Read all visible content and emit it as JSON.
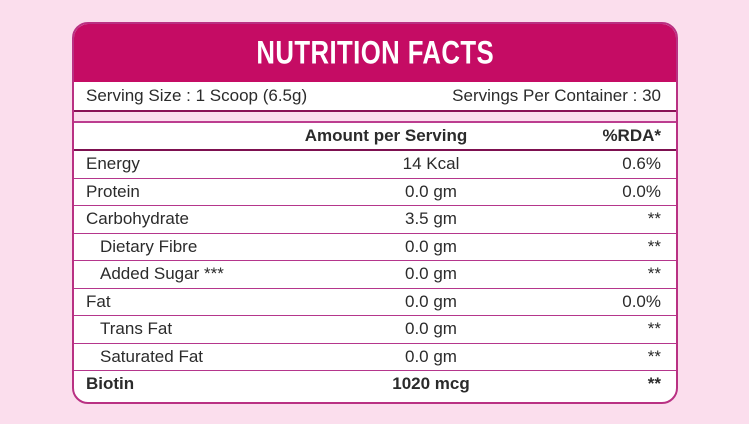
{
  "label": {
    "title": "NUTRITION FACTS",
    "serving_size": "Serving Size : 1 Scoop (6.5g)",
    "servings_per_container": "Servings Per Container : 30",
    "columns": {
      "amount": "Amount per Serving",
      "rda": "%RDA*"
    },
    "rows": [
      {
        "name": "Energy",
        "amount": "14 Kcal",
        "rda": "0.6%"
      },
      {
        "name": "Protein",
        "amount": "0.0 gm",
        "rda": "0.0%"
      },
      {
        "name": "Carbohydrate",
        "amount": "3.5 gm",
        "rda": "**"
      },
      {
        "name": "Dietary Fibre",
        "amount": "0.0 gm",
        "rda": "**"
      },
      {
        "name": "Added Sugar ***",
        "amount": "0.0 gm",
        "rda": "**"
      },
      {
        "name": "Fat",
        "amount": "0.0 gm",
        "rda": "0.0%"
      },
      {
        "name": "Trans Fat",
        "amount": "0.0 gm",
        "rda": "**"
      },
      {
        "name": "Saturated Fat",
        "amount": "0.0 gm",
        "rda": "**"
      },
      {
        "name": "Biotin",
        "amount": "1020 mcg",
        "rda": "**"
      }
    ],
    "colors": {
      "brand_magenta": "#c50c64",
      "page_pink": "#fbdeed",
      "divider_light": "#b5368c",
      "divider_dark": "#8a1256",
      "border": "#b93183",
      "text": "#2b2b2b",
      "title_text": "#ffffff"
    }
  }
}
